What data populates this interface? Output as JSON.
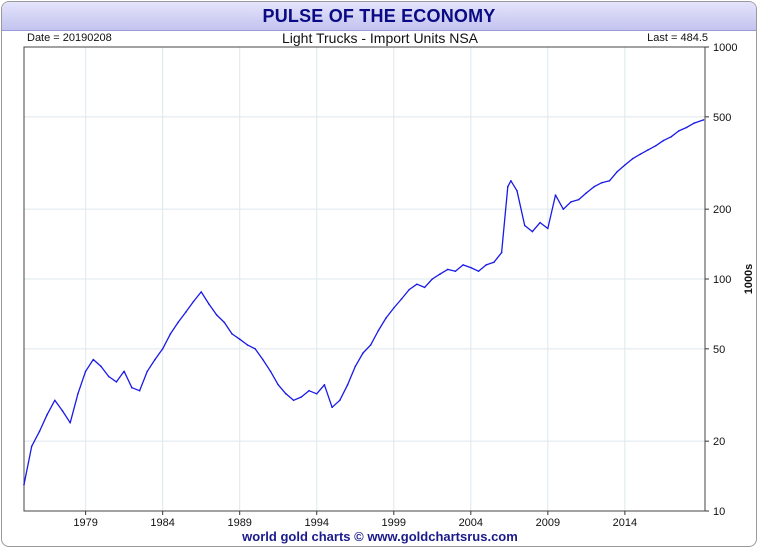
{
  "banner": {
    "title": "PULSE OF THE ECONOMY"
  },
  "header": {
    "date_label": "Date = 20190208",
    "last_label": "Last = 484.5"
  },
  "footer": {
    "credit": "world gold charts © www.goldchartsrus.com"
  },
  "colors": {
    "line": "#1a1ae6",
    "grid": "#dde8ee",
    "banner_text": "#0a0a84",
    "footer_text": "#1a1a8c"
  },
  "chart_data": {
    "type": "line",
    "title": "Light Trucks - Import Units NSA",
    "ylabel": "1000s",
    "yscale": "log",
    "ylim": [
      10,
      1000
    ],
    "xlim": [
      1975.0,
      2019.2
    ],
    "grid": true,
    "y_ticks": [
      10,
      20,
      50,
      100,
      200,
      500,
      1000
    ],
    "y_tick_labels": [
      "10",
      "20",
      "50",
      "100",
      "200",
      "500",
      "1000"
    ],
    "x_ticks": [
      1979,
      1984,
      1989,
      1994,
      1999,
      2004,
      2009,
      2014
    ],
    "x_tick_labels": [
      "1979",
      "1984",
      "1989",
      "1994",
      "1999",
      "2004",
      "2009",
      "2014"
    ],
    "series": [
      {
        "name": "",
        "x": [
          1975.0,
          1975.5,
          1976.0,
          1976.5,
          1977.0,
          1977.5,
          1978.0,
          1978.5,
          1979.0,
          1979.5,
          1980.0,
          1980.5,
          1981.0,
          1981.5,
          1982.0,
          1982.5,
          1983.0,
          1983.5,
          1984.0,
          1984.5,
          1985.0,
          1985.5,
          1986.0,
          1986.5,
          1987.0,
          1987.5,
          1988.0,
          1988.5,
          1989.0,
          1989.5,
          1990.0,
          1990.5,
          1991.0,
          1991.5,
          1992.0,
          1992.5,
          1993.0,
          1993.5,
          1994.0,
          1994.5,
          1995.0,
          1995.5,
          1996.0,
          1996.5,
          1997.0,
          1997.5,
          1998.0,
          1998.5,
          1999.0,
          1999.5,
          2000.0,
          2000.5,
          2001.0,
          2001.5,
          2002.0,
          2002.5,
          2003.0,
          2003.5,
          2004.0,
          2004.5,
          2005.0,
          2005.5,
          2006.0,
          2006.4,
          2006.6,
          2007.0,
          2007.5,
          2008.0,
          2008.5,
          2009.0,
          2009.5,
          2010.0,
          2010.5,
          2011.0,
          2011.5,
          2012.0,
          2012.5,
          2013.0,
          2013.5,
          2014.0,
          2014.5,
          2015.0,
          2015.5,
          2016.0,
          2016.5,
          2017.0,
          2017.5,
          2018.0,
          2018.5,
          2019.1
        ],
        "y": [
          13,
          19,
          22,
          26,
          30,
          27,
          24,
          32,
          40,
          45,
          42,
          38,
          36,
          40,
          34,
          33,
          40,
          45,
          50,
          58,
          65,
          72,
          80,
          88,
          78,
          70,
          65,
          58,
          55,
          52,
          50,
          45,
          40,
          35,
          32,
          30,
          31,
          33,
          32,
          35,
          28,
          30,
          35,
          42,
          48,
          52,
          60,
          68,
          75,
          82,
          90,
          95,
          92,
          100,
          105,
          110,
          108,
          115,
          112,
          108,
          115,
          118,
          130,
          250,
          265,
          240,
          170,
          160,
          175,
          165,
          230,
          200,
          215,
          220,
          235,
          250,
          260,
          265,
          290,
          310,
          330,
          345,
          360,
          375,
          395,
          410,
          435,
          450,
          470,
          485
        ]
      }
    ]
  }
}
